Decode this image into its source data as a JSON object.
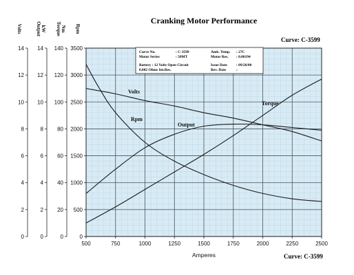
{
  "chart_data": {
    "type": "line",
    "title": "Cranking Motor Performance",
    "curve_label_top": "Curve: C-3599",
    "curve_label_bottom": "Curve: C-3599",
    "xlabel": "Amperes",
    "xlim": [
      500,
      2500
    ],
    "x_ticks": [
      500,
      750,
      1000,
      1250,
      1500,
      1750,
      2000,
      2250,
      2500
    ],
    "y_axes": [
      {
        "key": "volts",
        "title_line1": "Volts",
        "title_line2": "",
        "lim": [
          0,
          14
        ],
        "ticks": [
          0,
          2,
          4,
          6,
          8,
          10,
          12,
          14
        ]
      },
      {
        "key": "output",
        "title_line1": "Output",
        "title_line2": "kW",
        "lim": [
          0,
          14
        ],
        "ticks": [
          0,
          2,
          4,
          6,
          8,
          10,
          12,
          14
        ]
      },
      {
        "key": "torque",
        "title_line1": "Torque",
        "title_line2": "Nm",
        "lim": [
          0,
          140
        ],
        "ticks": [
          0,
          20,
          40,
          60,
          80,
          100,
          120,
          140
        ]
      },
      {
        "key": "rpm",
        "title_line1": "Rpm",
        "title_line2": "",
        "lim": [
          0,
          3500
        ],
        "ticks": [
          0,
          500,
          1000,
          1500,
          2000,
          2500,
          3000,
          3500
        ]
      }
    ],
    "grid": true,
    "series": [
      {
        "name": "Volts",
        "axis": "volts",
        "x": [
          500,
          750,
          1000,
          1250,
          1500,
          1750,
          2000,
          2250,
          2500
        ],
        "y": [
          11.0,
          10.6,
          10.1,
          9.7,
          9.2,
          8.8,
          8.3,
          7.8,
          7.1
        ]
      },
      {
        "name": "Output",
        "axis": "output",
        "x": [
          500,
          750,
          1000,
          1250,
          1500,
          1750,
          2000,
          2250,
          2500
        ],
        "y": [
          3.2,
          5.0,
          6.6,
          7.6,
          8.2,
          8.35,
          8.3,
          8.1,
          7.9
        ]
      },
      {
        "name": "Torque",
        "axis": "torque",
        "x": [
          500,
          750,
          1000,
          1250,
          1500,
          1750,
          2000,
          2250,
          2500
        ],
        "y": [
          10,
          22,
          35,
          48,
          61,
          75,
          90,
          105,
          117
        ]
      },
      {
        "name": "Rpm",
        "axis": "rpm",
        "x": [
          500,
          600,
          750,
          1000,
          1250,
          1500,
          1750,
          2000,
          2250,
          2500
        ],
        "y": [
          3200,
          2800,
          2300,
          1750,
          1400,
          1150,
          950,
          800,
          700,
          650
        ]
      }
    ],
    "info_box": {
      "curve_no_label": "Curve No.",
      "curve_no_value": ": C-3599",
      "motor_series_label": "Motor Series",
      "motor_series_value": ": 50MT",
      "amb_temp_label": "Amb. Temp.",
      "amb_temp_value": ": 27C",
      "motor_res_label": "Motor Res.",
      "motor_res_value": ": 0.00194",
      "battery_line1": "Battery : 12 Volts Open Circuit",
      "battery_line2": "0.002 Ohms Int.Res.",
      "issue_date_label": "Issue Date",
      "issue_date_value": ": 09/26/00",
      "rev_date_label": "Rev. Date",
      "rev_date_value": ":"
    }
  }
}
